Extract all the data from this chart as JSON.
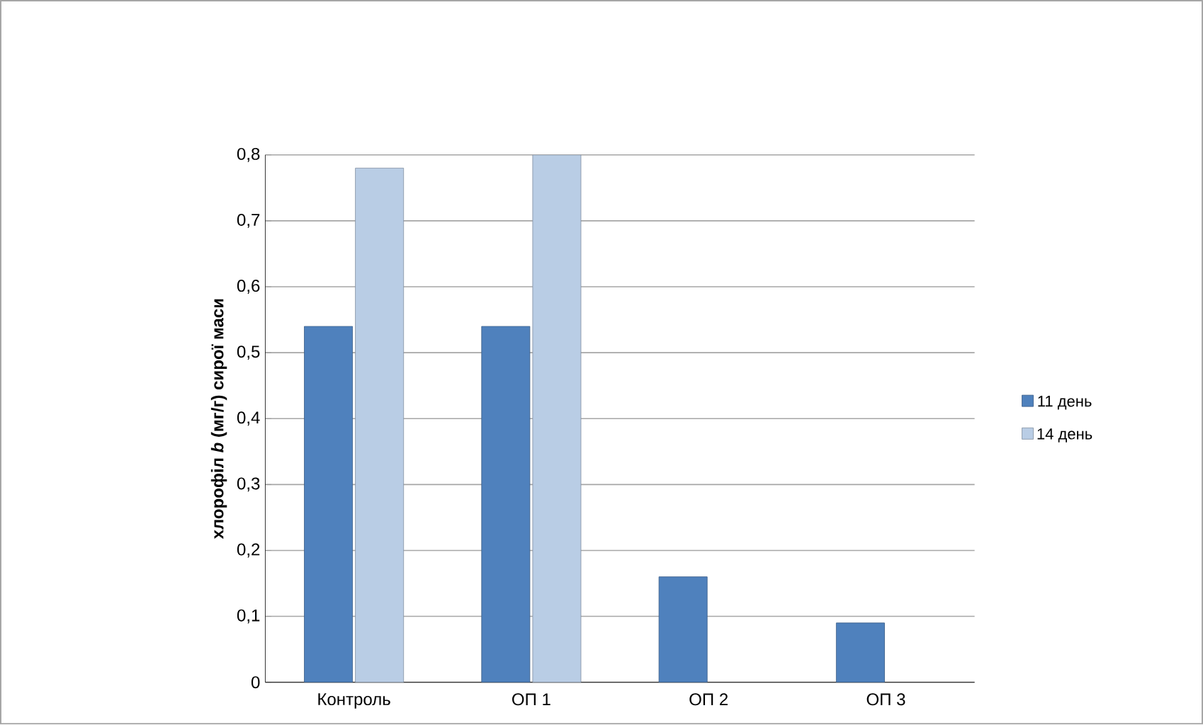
{
  "chart_data": {
    "type": "bar",
    "ylabel": "хлорофіл *b* (мг/г) сирої маси",
    "categories": [
      "Контроль",
      "ОП 1",
      "ОП 2",
      "ОП 3"
    ],
    "series": [
      {
        "name": "11 день",
        "color": "#4f81bd",
        "values": [
          0.54,
          0.54,
          0.16,
          0.09
        ]
      },
      {
        "name": "14 день",
        "color": "#b9cde5",
        "values": [
          0.78,
          0.8,
          null,
          null
        ]
      }
    ],
    "ylim": [
      0,
      0.8
    ],
    "yticks": [
      0,
      {
        "value": 0.1,
        "label": "0,1"
      },
      {
        "value": 0.2,
        "label": "0,2"
      },
      {
        "value": 0.3,
        "label": "0,3"
      },
      {
        "value": 0.4,
        "label": "0,4"
      },
      {
        "value": 0.5,
        "label": "0,5"
      },
      {
        "value": 0.6,
        "label": "0,6"
      },
      {
        "value": 0.7,
        "label": "0,7"
      },
      {
        "value": 0.8,
        "label": "0,8"
      }
    ],
    "grid": "y",
    "legend": "right"
  }
}
